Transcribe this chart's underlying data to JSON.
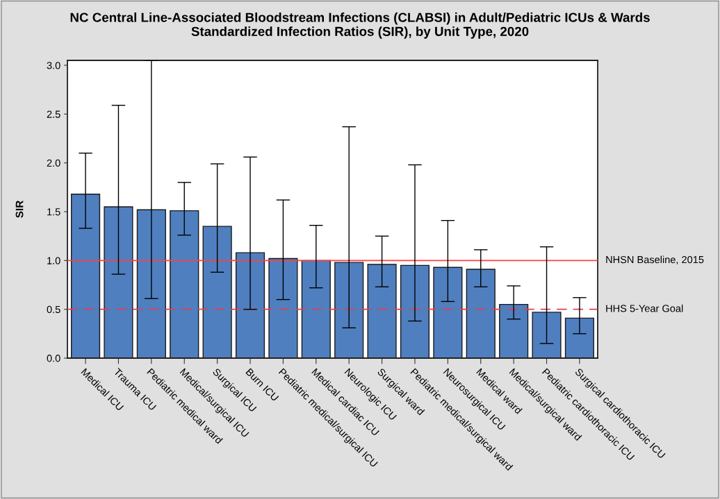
{
  "chart_data": {
    "type": "bar",
    "title": "NC Central Line-Associated Bloodstream Infections (CLABSI) in Adult/Pediatric ICUs & Wards\nStandardized Infection Ratios (SIR), by Unit Type, 2020",
    "ylabel": "SIR",
    "categories": [
      "Medical ICU",
      "Trauma ICU",
      "Pediatric medical ward",
      "Medical/surgical ICU",
      "Surgical ICU",
      "Burn ICU",
      "Pediatric medical/surgical ICU",
      "Medical cardiac ICU",
      "Neurologic ICU",
      "Surgical ward",
      "Pediatric medical/surgical ward",
      "Neurosurgical ICU",
      "Medical ward",
      "Medical/surgical ward",
      "Pediatric cardiothoracic ICU",
      "Surgical cardiothoracic ICU"
    ],
    "values": [
      1.68,
      1.55,
      1.52,
      1.51,
      1.35,
      1.08,
      1.02,
      1.0,
      0.98,
      0.96,
      0.95,
      0.93,
      0.91,
      0.55,
      0.47,
      0.41
    ],
    "errors": [
      [
        1.33,
        2.1
      ],
      [
        0.86,
        2.59
      ],
      [
        0.61,
        3.05
      ],
      [
        1.26,
        1.8
      ],
      [
        0.88,
        1.99
      ],
      [
        0.5,
        2.06
      ],
      [
        0.6,
        1.62
      ],
      [
        0.72,
        1.36
      ],
      [
        0.31,
        2.37
      ],
      [
        0.73,
        1.25
      ],
      [
        0.38,
        1.98
      ],
      [
        0.58,
        1.41
      ],
      [
        0.73,
        1.11
      ],
      [
        0.4,
        0.74
      ],
      [
        0.15,
        1.14
      ],
      [
        0.25,
        0.62
      ]
    ],
    "color": "#4f7fbf",
    "ylim": [
      0,
      3.05
    ],
    "yticks": [
      {
        "value": 0,
        "label": "0.0"
      },
      {
        "value": 0.5,
        "label": "0.5"
      },
      {
        "value": 1,
        "label": "1.0"
      },
      {
        "value": 1.5,
        "label": "1.5"
      },
      {
        "value": 2,
        "label": "2.0"
      },
      {
        "value": 2.5,
        "label": "2.5"
      },
      {
        "value": 3,
        "label": "3.0"
      }
    ],
    "ref_lines": [
      {
        "axis": "y",
        "value": 1.0,
        "label": "NHSN Baseline, 2015",
        "color": "#ff4040",
        "line_style": "solid"
      },
      {
        "axis": "y",
        "value": 0.5,
        "label": "HHS 5-Year Goal",
        "color": "#e04050",
        "line_style": "dashed"
      }
    ],
    "grid": false,
    "legend": false
  }
}
